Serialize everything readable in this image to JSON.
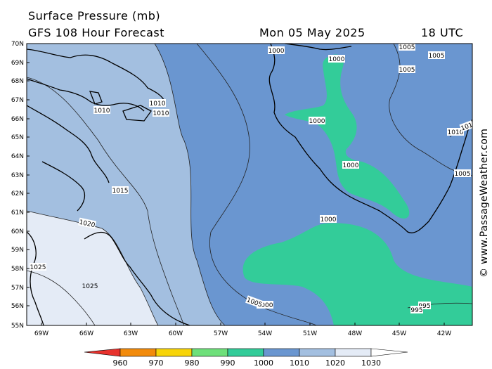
{
  "header": {
    "title": "Surface Pressure (mb)",
    "subtitle": "GFS 108 Hour Forecast",
    "date": "Mon 05 May 2025",
    "time": "18 UTC"
  },
  "credit": "© www.PassageWeather.com",
  "axes": {
    "lat_labels": [
      "70N",
      "69N",
      "68N",
      "67N",
      "66N",
      "65N",
      "64N",
      "63N",
      "62N",
      "61N",
      "60N",
      "59N",
      "58N",
      "57N",
      "56N",
      "55N"
    ],
    "lon_labels": [
      "69W",
      "66W",
      "63W",
      "60W",
      "57W",
      "54W",
      "51W",
      "48W",
      "45W",
      "42W"
    ]
  },
  "isobar_labels": [
    {
      "text": "1000"
    },
    {
      "text": "1000"
    },
    {
      "text": "1005"
    },
    {
      "text": "1005"
    },
    {
      "text": "1005"
    },
    {
      "text": "1010"
    },
    {
      "text": "1010"
    },
    {
      "text": "1010"
    },
    {
      "text": "1000"
    },
    {
      "text": "1010"
    },
    {
      "text": "101"
    },
    {
      "text": "1000"
    },
    {
      "text": "1005"
    },
    {
      "text": "1015"
    },
    {
      "text": "1020"
    },
    {
      "text": "1000"
    },
    {
      "text": "1025"
    },
    {
      "text": "1025"
    },
    {
      "text": "1000"
    },
    {
      "text": "1005"
    },
    {
      "text": "995"
    },
    {
      "text": "995"
    }
  ],
  "legend": {
    "labels": [
      "960",
      "970",
      "980",
      "990",
      "1000",
      "1010",
      "1020",
      "1030"
    ],
    "colors": [
      "#e8322d",
      "#f28b0c",
      "#f7d408",
      "#6ee07a",
      "#33cc99",
      "#6a96d0",
      "#a3bfe0",
      "#e4ebf6",
      "#ffffff"
    ]
  },
  "colors": {
    "p995_1000": "#33cc99",
    "p1000_1005": "#6a96d0",
    "p1005_1010": "#6a96d0",
    "p1010_1015": "#a3bfe0",
    "p1015_1020": "#a3bfe0",
    "p1020_1025": "#e4ebf6",
    "land_outline": "#000000"
  }
}
